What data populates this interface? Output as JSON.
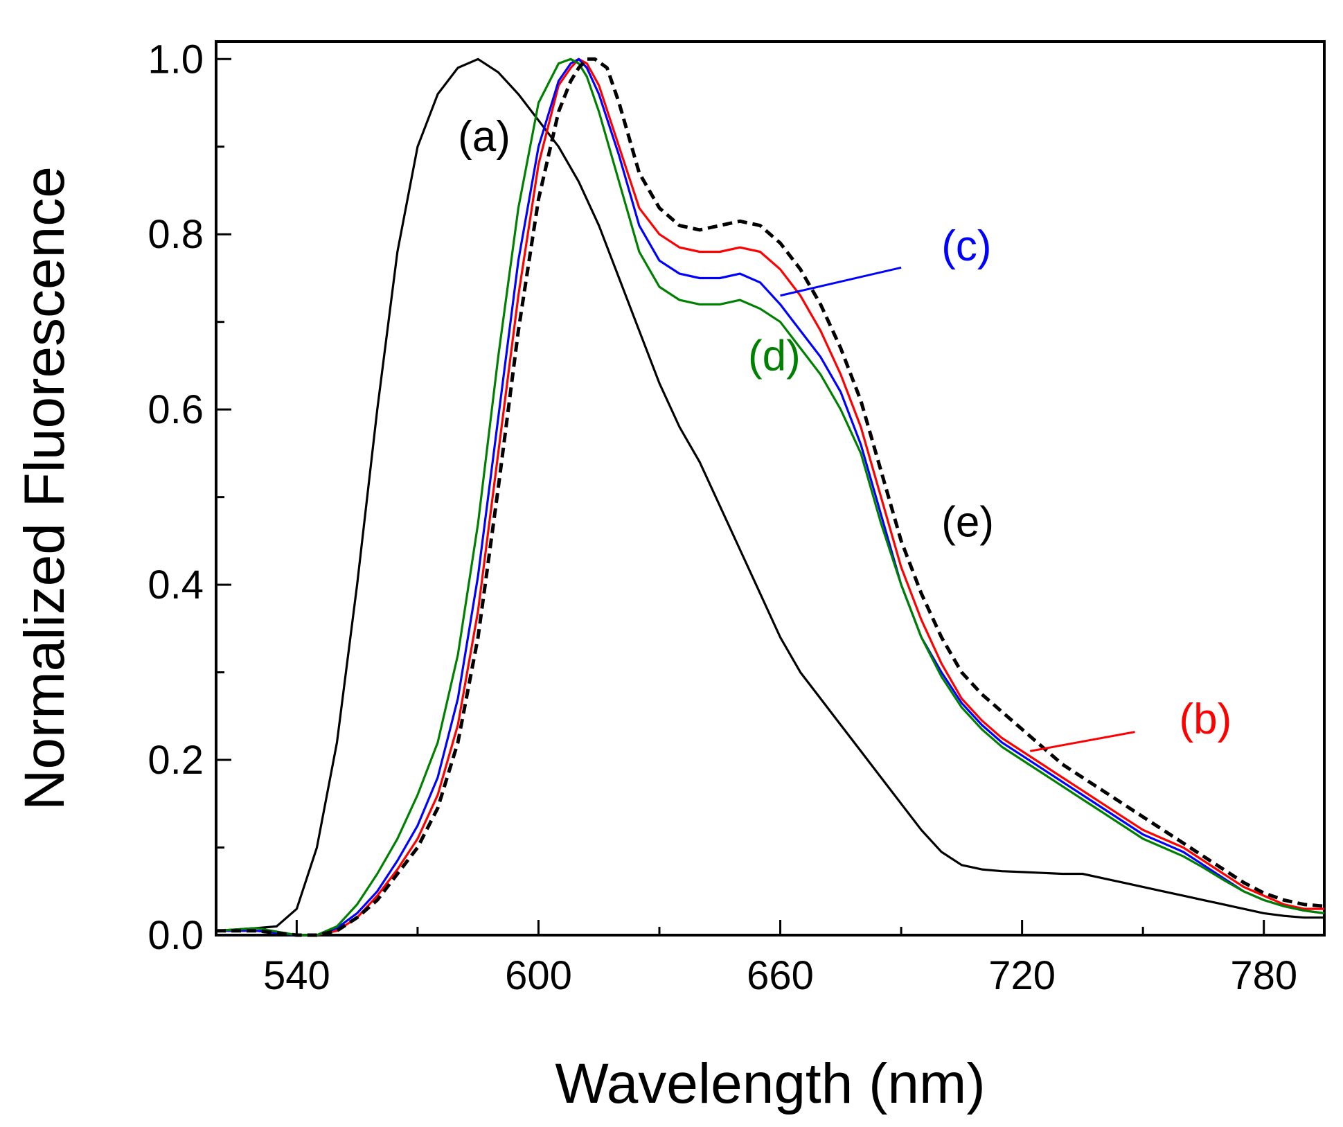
{
  "chart_data": {
    "type": "line",
    "title": "",
    "xlabel": "Wavelength (nm)",
    "ylabel": "Normalized Fluorescence",
    "xlim": [
      520,
      795
    ],
    "ylim": [
      0.0,
      1.02
    ],
    "x_ticks": [
      540,
      600,
      660,
      720,
      780
    ],
    "y_ticks": [
      0.0,
      0.2,
      0.4,
      0.6,
      0.8,
      1.0
    ],
    "x_tick_labels": [
      "540",
      "600",
      "660",
      "720",
      "780"
    ],
    "y_tick_labels": [
      "0.0",
      "0.2",
      "0.4",
      "0.6",
      "0.8",
      "1.0"
    ],
    "grid": false,
    "series": [
      {
        "name": "(a)",
        "color": "#000000",
        "style": "solid",
        "x": [
          520,
          530,
          535,
          540,
          545,
          550,
          555,
          560,
          565,
          570,
          575,
          580,
          585,
          590,
          595,
          600,
          605,
          610,
          615,
          620,
          625,
          630,
          635,
          640,
          645,
          650,
          655,
          660,
          665,
          670,
          675,
          680,
          685,
          690,
          695,
          700,
          705,
          710,
          715,
          720,
          725,
          730,
          735,
          740,
          745,
          750,
          755,
          760,
          765,
          770,
          775,
          780,
          785,
          790,
          795
        ],
        "y": [
          0.005,
          0.008,
          0.01,
          0.03,
          0.1,
          0.22,
          0.4,
          0.6,
          0.78,
          0.9,
          0.96,
          0.99,
          1.0,
          0.985,
          0.96,
          0.93,
          0.9,
          0.86,
          0.81,
          0.75,
          0.69,
          0.63,
          0.58,
          0.54,
          0.49,
          0.44,
          0.39,
          0.34,
          0.3,
          0.27,
          0.24,
          0.21,
          0.18,
          0.15,
          0.12,
          0.095,
          0.08,
          0.075,
          0.073,
          0.072,
          0.071,
          0.07,
          0.07,
          0.065,
          0.06,
          0.055,
          0.05,
          0.045,
          0.04,
          0.035,
          0.03,
          0.025,
          0.022,
          0.02,
          0.02
        ]
      },
      {
        "name": "(b)",
        "color": "#ff0000",
        "style": "solid",
        "x": [
          520,
          530,
          540,
          545,
          550,
          555,
          560,
          565,
          570,
          575,
          580,
          585,
          590,
          595,
          600,
          605,
          608,
          610,
          612,
          615,
          620,
          625,
          630,
          635,
          640,
          645,
          650,
          655,
          660,
          665,
          670,
          675,
          680,
          685,
          690,
          695,
          700,
          705,
          710,
          715,
          720,
          725,
          730,
          735,
          740,
          745,
          750,
          755,
          760,
          765,
          770,
          775,
          780,
          785,
          790,
          795
        ],
        "y": [
          0.005,
          0.005,
          0.0,
          0.0,
          0.005,
          0.02,
          0.045,
          0.075,
          0.11,
          0.16,
          0.24,
          0.37,
          0.55,
          0.73,
          0.88,
          0.97,
          0.99,
          1.0,
          0.995,
          0.97,
          0.9,
          0.83,
          0.8,
          0.785,
          0.78,
          0.78,
          0.785,
          0.78,
          0.76,
          0.73,
          0.69,
          0.64,
          0.58,
          0.5,
          0.42,
          0.36,
          0.31,
          0.27,
          0.245,
          0.225,
          0.21,
          0.195,
          0.18,
          0.165,
          0.15,
          0.135,
          0.12,
          0.11,
          0.1,
          0.085,
          0.07,
          0.055,
          0.045,
          0.035,
          0.03,
          0.03
        ]
      },
      {
        "name": "(c)",
        "color": "#0000ff",
        "style": "solid",
        "x": [
          520,
          530,
          540,
          545,
          550,
          555,
          560,
          565,
          570,
          575,
          580,
          585,
          590,
          595,
          600,
          605,
          608,
          610,
          612,
          615,
          620,
          625,
          630,
          635,
          640,
          645,
          650,
          655,
          660,
          665,
          670,
          675,
          680,
          685,
          690,
          695,
          700,
          705,
          710,
          715,
          720,
          725,
          730,
          735,
          740,
          745,
          750,
          755,
          760,
          765,
          770,
          775,
          780,
          785,
          790,
          795
        ],
        "y": [
          0.005,
          0.005,
          0.0,
          0.0,
          0.008,
          0.025,
          0.05,
          0.085,
          0.125,
          0.18,
          0.27,
          0.41,
          0.59,
          0.77,
          0.9,
          0.975,
          0.995,
          1.0,
          0.99,
          0.96,
          0.89,
          0.81,
          0.77,
          0.755,
          0.75,
          0.75,
          0.755,
          0.745,
          0.72,
          0.69,
          0.66,
          0.62,
          0.56,
          0.48,
          0.4,
          0.34,
          0.3,
          0.265,
          0.24,
          0.22,
          0.205,
          0.19,
          0.175,
          0.16,
          0.145,
          0.13,
          0.115,
          0.105,
          0.095,
          0.08,
          0.065,
          0.05,
          0.04,
          0.033,
          0.028,
          0.025
        ]
      },
      {
        "name": "(d)",
        "color": "#008000",
        "style": "solid",
        "x": [
          520,
          530,
          540,
          545,
          550,
          555,
          560,
          565,
          570,
          575,
          580,
          585,
          590,
          595,
          600,
          605,
          608,
          610,
          612,
          615,
          620,
          625,
          630,
          635,
          640,
          645,
          650,
          655,
          660,
          665,
          670,
          675,
          680,
          685,
          690,
          695,
          700,
          705,
          710,
          715,
          720,
          725,
          730,
          735,
          740,
          745,
          750,
          755,
          760,
          765,
          770,
          775,
          780,
          785,
          790,
          795
        ],
        "y": [
          0.005,
          0.008,
          0.0,
          0.0,
          0.01,
          0.035,
          0.07,
          0.11,
          0.16,
          0.22,
          0.32,
          0.47,
          0.66,
          0.83,
          0.95,
          0.995,
          1.0,
          0.995,
          0.98,
          0.94,
          0.86,
          0.78,
          0.74,
          0.725,
          0.72,
          0.72,
          0.725,
          0.715,
          0.7,
          0.67,
          0.64,
          0.6,
          0.55,
          0.47,
          0.4,
          0.34,
          0.295,
          0.26,
          0.235,
          0.215,
          0.2,
          0.185,
          0.17,
          0.155,
          0.14,
          0.125,
          0.11,
          0.1,
          0.09,
          0.077,
          0.063,
          0.05,
          0.04,
          0.033,
          0.028,
          0.025
        ]
      },
      {
        "name": "(e)",
        "color": "#000000",
        "style": "dashed",
        "x": [
          520,
          530,
          540,
          545,
          550,
          555,
          560,
          565,
          570,
          575,
          580,
          585,
          590,
          595,
          600,
          605,
          608,
          610,
          612,
          614,
          617,
          620,
          625,
          630,
          635,
          640,
          645,
          650,
          655,
          660,
          665,
          670,
          675,
          680,
          685,
          690,
          695,
          700,
          705,
          710,
          715,
          720,
          725,
          730,
          735,
          740,
          745,
          750,
          755,
          760,
          765,
          770,
          775,
          780,
          785,
          790,
          795
        ],
        "y": [
          0.005,
          0.005,
          0.0,
          0.0,
          0.005,
          0.02,
          0.04,
          0.07,
          0.1,
          0.145,
          0.22,
          0.34,
          0.51,
          0.69,
          0.84,
          0.94,
          0.975,
          0.99,
          1.0,
          1.0,
          0.99,
          0.95,
          0.87,
          0.83,
          0.81,
          0.805,
          0.81,
          0.815,
          0.81,
          0.79,
          0.76,
          0.72,
          0.67,
          0.61,
          0.53,
          0.45,
          0.39,
          0.34,
          0.3,
          0.275,
          0.255,
          0.235,
          0.215,
          0.195,
          0.18,
          0.165,
          0.15,
          0.135,
          0.12,
          0.105,
          0.09,
          0.075,
          0.06,
          0.048,
          0.04,
          0.035,
          0.033
        ]
      }
    ],
    "annotations": [
      {
        "text": "(a)",
        "color": "#000000",
        "x": 580,
        "y": 0.895
      },
      {
        "text": "(b)",
        "color": "#ff0000",
        "x": 759,
        "y": 0.23
      },
      {
        "text": "(c)",
        "color": "#0000ff",
        "x": 700,
        "y": 0.77
      },
      {
        "text": "(d)",
        "color": "#008000",
        "x": 652,
        "y": 0.645
      },
      {
        "text": "(e)",
        "color": "#000000",
        "x": 700,
        "y": 0.455
      }
    ],
    "leaders": [
      {
        "from": [
          660,
          0.73
        ],
        "to": [
          690,
          0.762
        ],
        "color": "#0000ff"
      },
      {
        "from": [
          722,
          0.21
        ],
        "to": [
          748,
          0.232
        ],
        "color": "#ff0000"
      }
    ]
  }
}
